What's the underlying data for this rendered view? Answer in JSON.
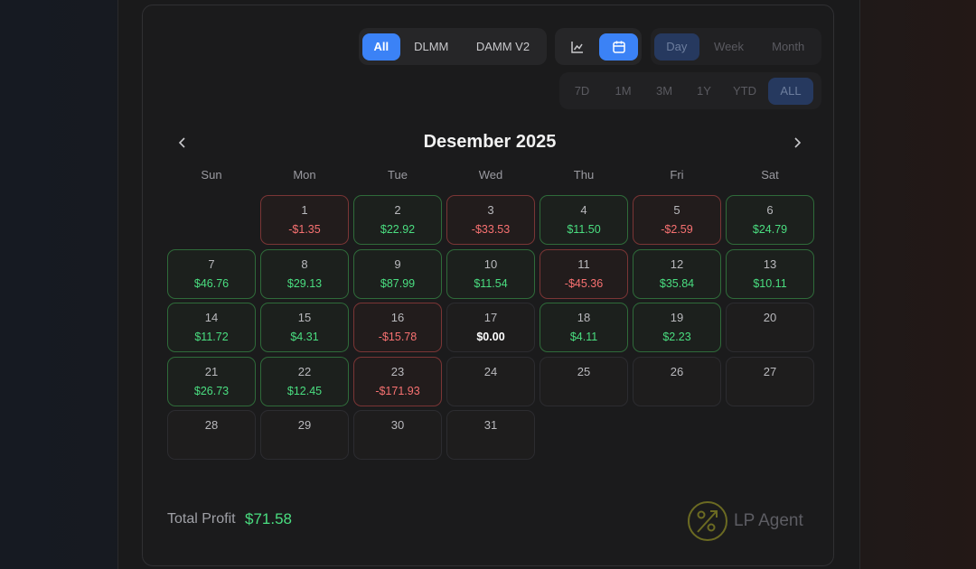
{
  "filters": {
    "protocols": [
      "All",
      "DLMM",
      "DAMM V2"
    ],
    "protocol_active": "All",
    "view_icons": [
      "line-chart-icon",
      "calendar-icon"
    ],
    "view_active": "calendar-icon",
    "granularity": [
      "Day",
      "Week",
      "Month"
    ],
    "granularity_active": "Day",
    "ranges": [
      "7D",
      "1M",
      "3M",
      "1Y",
      "YTD",
      "ALL"
    ],
    "range_active": "ALL"
  },
  "calendar": {
    "title": "Desember 2025",
    "weekdays": [
      "Sun",
      "Mon",
      "Tue",
      "Wed",
      "Thu",
      "Fri",
      "Sat"
    ],
    "start_weekday": 1,
    "days": [
      {
        "day": "1",
        "value": "-$1.35",
        "status": "negative"
      },
      {
        "day": "2",
        "value": "$22.92",
        "status": "positive"
      },
      {
        "day": "3",
        "value": "-$33.53",
        "status": "negative"
      },
      {
        "day": "4",
        "value": "$11.50",
        "status": "positive"
      },
      {
        "day": "5",
        "value": "-$2.59",
        "status": "negative"
      },
      {
        "day": "6",
        "value": "$24.79",
        "status": "positive"
      },
      {
        "day": "7",
        "value": "$46.76",
        "status": "positive"
      },
      {
        "day": "8",
        "value": "$29.13",
        "status": "positive"
      },
      {
        "day": "9",
        "value": "$87.99",
        "status": "positive"
      },
      {
        "day": "10",
        "value": "$11.54",
        "status": "positive"
      },
      {
        "day": "11",
        "value": "-$45.36",
        "status": "negative"
      },
      {
        "day": "12",
        "value": "$35.84",
        "status": "positive"
      },
      {
        "day": "13",
        "value": "$10.11",
        "status": "positive"
      },
      {
        "day": "14",
        "value": "$11.72",
        "status": "positive"
      },
      {
        "day": "15",
        "value": "$4.31",
        "status": "positive"
      },
      {
        "day": "16",
        "value": "-$15.78",
        "status": "negative"
      },
      {
        "day": "17",
        "value": "$0.00",
        "status": "zero"
      },
      {
        "day": "18",
        "value": "$4.11",
        "status": "positive"
      },
      {
        "day": "19",
        "value": "$2.23",
        "status": "positive"
      },
      {
        "day": "20",
        "value": "",
        "status": "empty"
      },
      {
        "day": "21",
        "value": "$26.73",
        "status": "positive"
      },
      {
        "day": "22",
        "value": "$12.45",
        "status": "positive"
      },
      {
        "day": "23",
        "value": "-$171.93",
        "status": "negative"
      },
      {
        "day": "24",
        "value": "",
        "status": "empty"
      },
      {
        "day": "25",
        "value": "",
        "status": "empty"
      },
      {
        "day": "26",
        "value": "",
        "status": "empty"
      },
      {
        "day": "27",
        "value": "",
        "status": "empty"
      },
      {
        "day": "28",
        "value": "",
        "status": "empty"
      },
      {
        "day": "29",
        "value": "",
        "status": "empty"
      },
      {
        "day": "30",
        "value": "",
        "status": "empty"
      },
      {
        "day": "31",
        "value": "",
        "status": "empty"
      }
    ]
  },
  "summary": {
    "total_label": "Total Profit",
    "total_value": "$71.58"
  },
  "brand": {
    "name": "LP Agent",
    "icon": "percent-arrow-logo-icon"
  },
  "colors": {
    "accent": "#3b82f6",
    "positive": "#4ade80",
    "negative": "#f87171"
  }
}
